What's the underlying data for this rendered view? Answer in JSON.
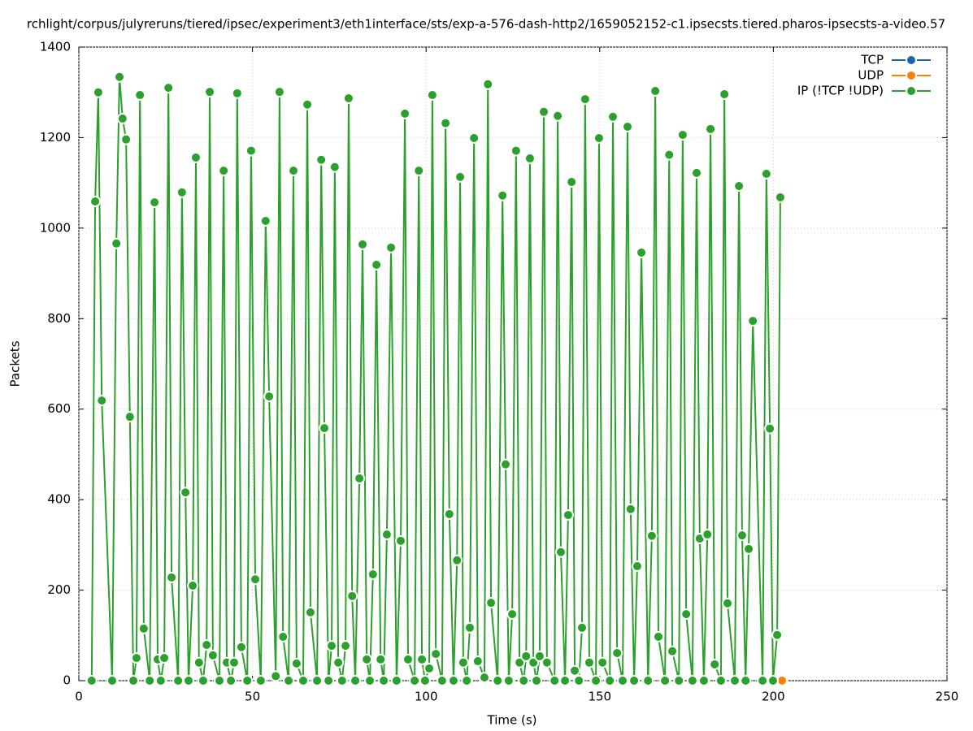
{
  "chart_data": {
    "type": "line",
    "title": "rchlight/corpus/julyreruns/tiered/ipsec/experiment3/eth1interface/sts/exp-a-576-dash-http2/1659052152-c1.ipsecsts.tiered.pharos-ipsecsts-a-video.57",
    "x_label": "Time (s)",
    "y_label": "Packets",
    "xlim": [
      0,
      250
    ],
    "xticks": [
      0,
      50,
      100,
      150,
      200,
      250
    ],
    "ylim": [
      0,
      1400
    ],
    "yticks": [
      0,
      200,
      400,
      600,
      800,
      1000,
      1200,
      1400
    ],
    "grid": true,
    "legend": "top-right",
    "series": [
      {
        "name": "TCP",
        "color": "#1a64b0",
        "x": [
          202.5
        ],
        "values": [
          0
        ]
      },
      {
        "name": "UDP",
        "color": "#ff7f0e",
        "x": [
          202.5
        ],
        "values": [
          0
        ]
      },
      {
        "name": "IP (!TCP  !UDP)",
        "color": "#2ca02c",
        "x": [
          3.7,
          4.7,
          5.6,
          6.6,
          9.6,
          10.8,
          11.7,
          12.6,
          13.6,
          14.7,
          15.7,
          16.6,
          17.6,
          18.7,
          20.4,
          21.8,
          22.7,
          23.6,
          24.6,
          25.8,
          26.7,
          28.6,
          29.7,
          30.7,
          31.6,
          32.8,
          33.7,
          34.6,
          35.8,
          36.8,
          37.7,
          38.6,
          40.5,
          41.7,
          42.6,
          43.8,
          44.7,
          45.6,
          46.8,
          48.5,
          49.6,
          50.8,
          52.4,
          53.8,
          54.8,
          56.7,
          57.8,
          58.8,
          60.4,
          61.8,
          62.7,
          64.6,
          65.8,
          66.7,
          68.6,
          69.8,
          70.7,
          71.9,
          72.8,
          73.7,
          74.7,
          75.8,
          76.8,
          77.7,
          78.7,
          79.6,
          80.8,
          81.7,
          82.9,
          83.8,
          84.7,
          85.7,
          86.9,
          87.8,
          88.7,
          89.9,
          91.5,
          92.7,
          93.9,
          94.8,
          96.7,
          97.9,
          98.8,
          99.7,
          100.9,
          101.8,
          102.8,
          104.6,
          105.6,
          106.7,
          107.9,
          108.9,
          109.8,
          110.7,
          111.7,
          112.6,
          113.8,
          114.9,
          116.8,
          117.8,
          118.7,
          120.6,
          122.0,
          122.9,
          123.8,
          124.8,
          125.9,
          126.9,
          128.1,
          128.8,
          129.9,
          130.9,
          131.8,
          132.7,
          133.9,
          134.8,
          137.0,
          137.9,
          138.8,
          140.0,
          140.9,
          141.9,
          142.8,
          144.0,
          144.9,
          145.8,
          147.0,
          148.9,
          149.8,
          150.8,
          152.9,
          153.8,
          155.0,
          156.6,
          158.0,
          158.9,
          159.9,
          160.8,
          162.0,
          163.9,
          165.0,
          166.0,
          166.9,
          168.8,
          170.0,
          170.9,
          172.8,
          173.9,
          174.9,
          176.7,
          177.9,
          178.8,
          180.0,
          181.0,
          181.9,
          183.1,
          184.9,
          185.9,
          186.8,
          188.9,
          190.1,
          191.0,
          192.0,
          192.9,
          194.1,
          196.9,
          198.0,
          199.0,
          199.9,
          201.1,
          202.0
        ],
        "values": [
          0,
          1059,
          1300,
          619,
          0,
          966,
          1334,
          1242,
          1196,
          583,
          0,
          50,
          1294,
          115,
          0,
          1057,
          47,
          0,
          50,
          1310,
          228,
          0,
          1079,
          416,
          0,
          210,
          1156,
          40,
          0,
          79,
          1301,
          56,
          0,
          1127,
          40,
          0,
          40,
          1298,
          74,
          0,
          1171,
          224,
          0,
          1016,
          628,
          10,
          1301,
          97,
          0,
          1127,
          38,
          0,
          1273,
          151,
          0,
          1151,
          558,
          0,
          77,
          1135,
          40,
          0,
          77,
          1287,
          187,
          0,
          447,
          964,
          47,
          0,
          235,
          919,
          47,
          0,
          323,
          957,
          0,
          309,
          1253,
          47,
          0,
          1127,
          47,
          0,
          27,
          1294,
          59,
          0,
          1232,
          368,
          0,
          266,
          1113,
          40,
          0,
          117,
          1199,
          43,
          7,
          1318,
          172,
          0,
          1072,
          478,
          0,
          147,
          1171,
          40,
          0,
          54,
          1154,
          40,
          0,
          54,
          1257,
          40,
          0,
          1248,
          284,
          0,
          366,
          1102,
          22,
          0,
          117,
          1285,
          40,
          0,
          1199,
          40,
          0,
          1246,
          61,
          0,
          1224,
          379,
          0,
          253,
          946,
          0,
          320,
          1303,
          97,
          0,
          1162,
          65,
          0,
          1206,
          147,
          0,
          1122,
          314,
          0,
          323,
          1219,
          36,
          0,
          1296,
          171,
          0,
          1093,
          321,
          0,
          291,
          795,
          0,
          1120,
          557,
          0,
          101,
          1068
        ]
      }
    ]
  }
}
